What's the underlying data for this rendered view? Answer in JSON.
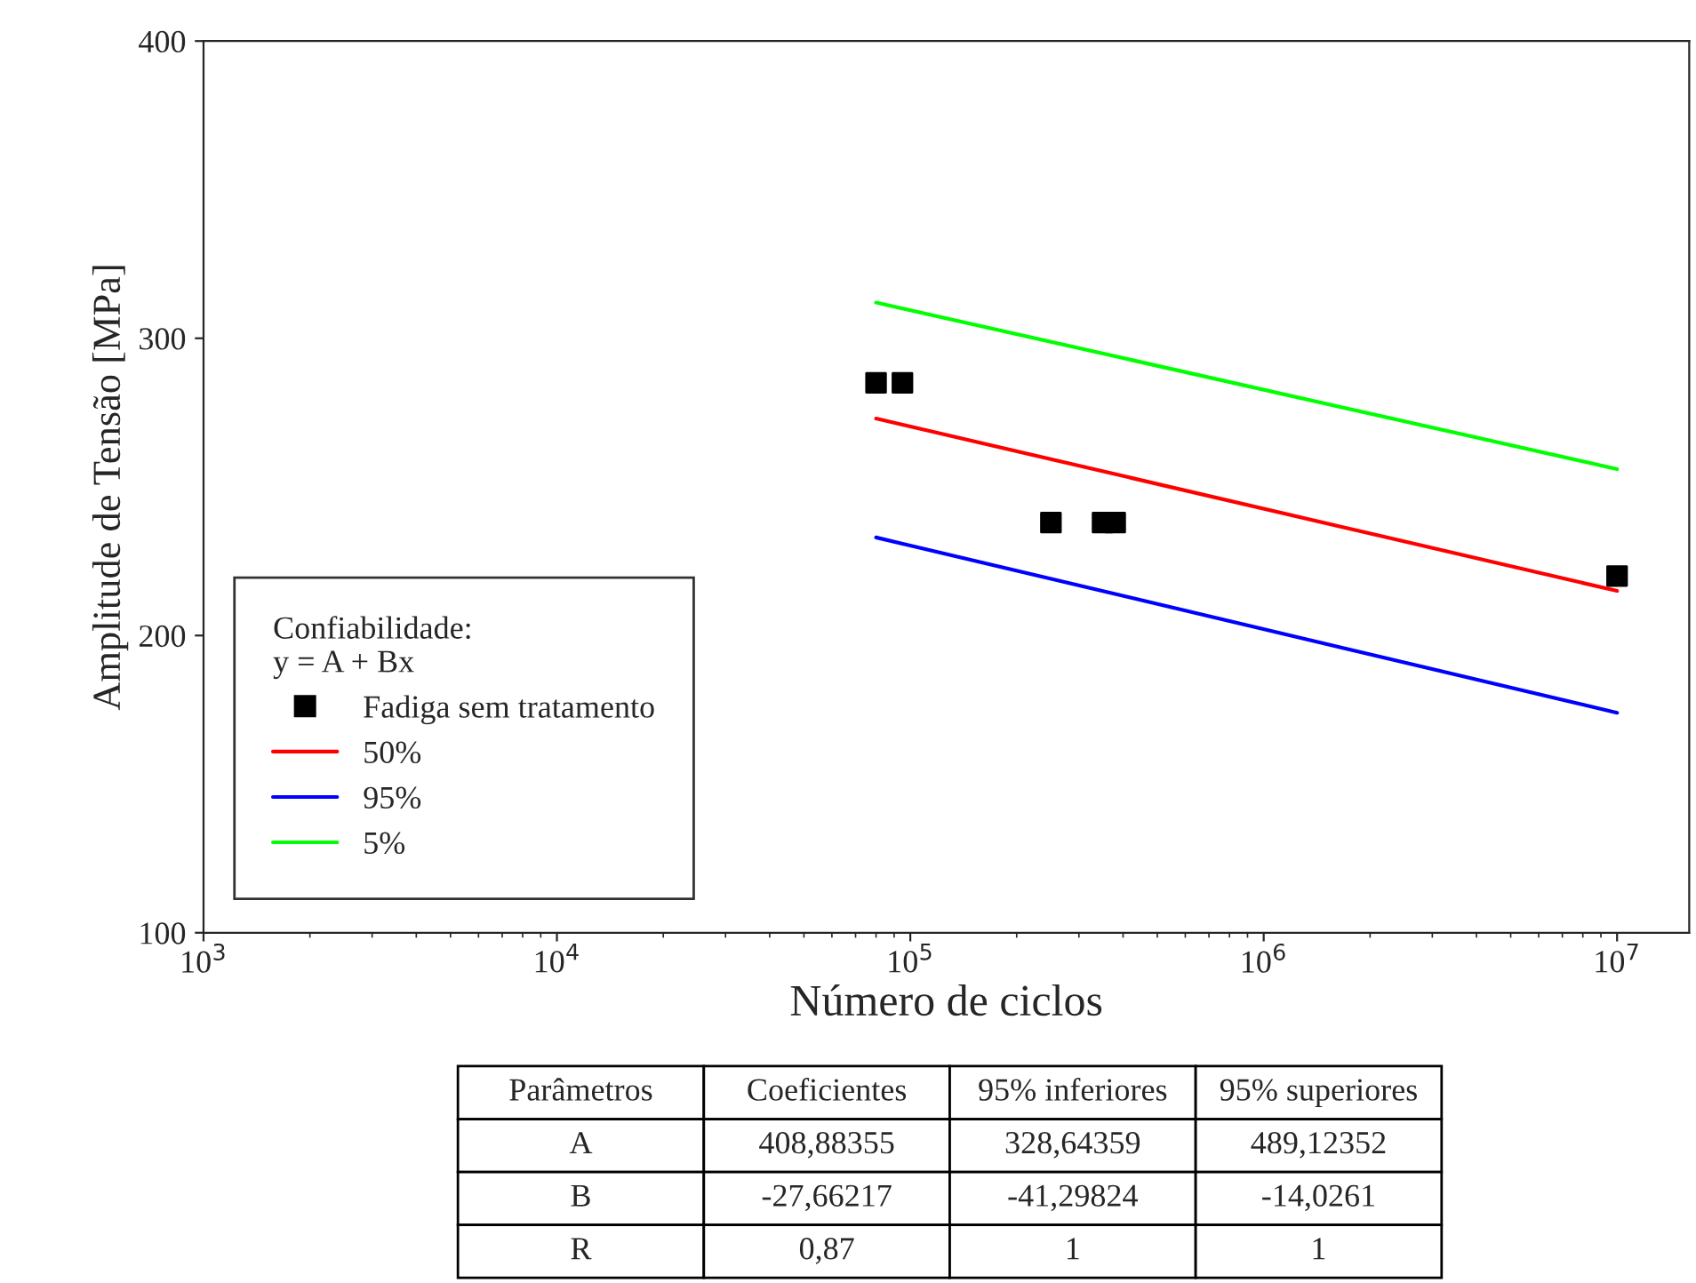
{
  "chart_data": {
    "type": "line",
    "xlabel": "Número de ciclos",
    "ylabel": "Amplitude de Tensão [MPa]",
    "legend_title": "Confiabilidade:\ny = A + Bx",
    "log": "x",
    "grid": false,
    "legend": "lower left",
    "xlim": [
      1000,
      16000000
    ],
    "xticks": [
      {
        "value": 1000,
        "label": "10$^{3}$"
      },
      {
        "value": 10000,
        "label": "10$^{4}$"
      },
      {
        "value": 100000,
        "label": "10$^{5}$"
      },
      {
        "value": 1000000,
        "label": "10$^{6}$"
      },
      {
        "value": 10000000,
        "label": "10$^{7}$"
      }
    ],
    "ylim": [
      100,
      400
    ],
    "yticks": [
      100,
      200,
      300,
      400
    ],
    "series": [
      {
        "name": "Fadiga sem tratamento",
        "type": "scatter",
        "marker": "square",
        "color": "#000000",
        "x": [
          80000,
          95000,
          250000,
          350000,
          380000,
          10000000
        ],
        "values": [
          285,
          285,
          238,
          238,
          238,
          220
        ]
      },
      {
        "name": "50%",
        "color": "#ff0000",
        "x": [
          80000,
          10000000
        ],
        "values": [
          273,
          215
        ]
      },
      {
        "name": "95%",
        "color": "#0000ff",
        "x": [
          80000,
          10000000
        ],
        "values": [
          233,
          174
        ]
      },
      {
        "name": "5%",
        "color": "#00ff00",
        "x": [
          80000,
          10000000
        ],
        "values": [
          312,
          256
        ]
      }
    ],
    "annotations": [
      "Parâmetros",
      "Coeficientes",
      "95% inferiores",
      "95% superiores",
      "A",
      "408,88355",
      "328,64359",
      "489,12352",
      "B",
      "-27,66217",
      "-41,29824",
      "-14,0261",
      "R",
      "0,87",
      "1",
      "1"
    ]
  }
}
